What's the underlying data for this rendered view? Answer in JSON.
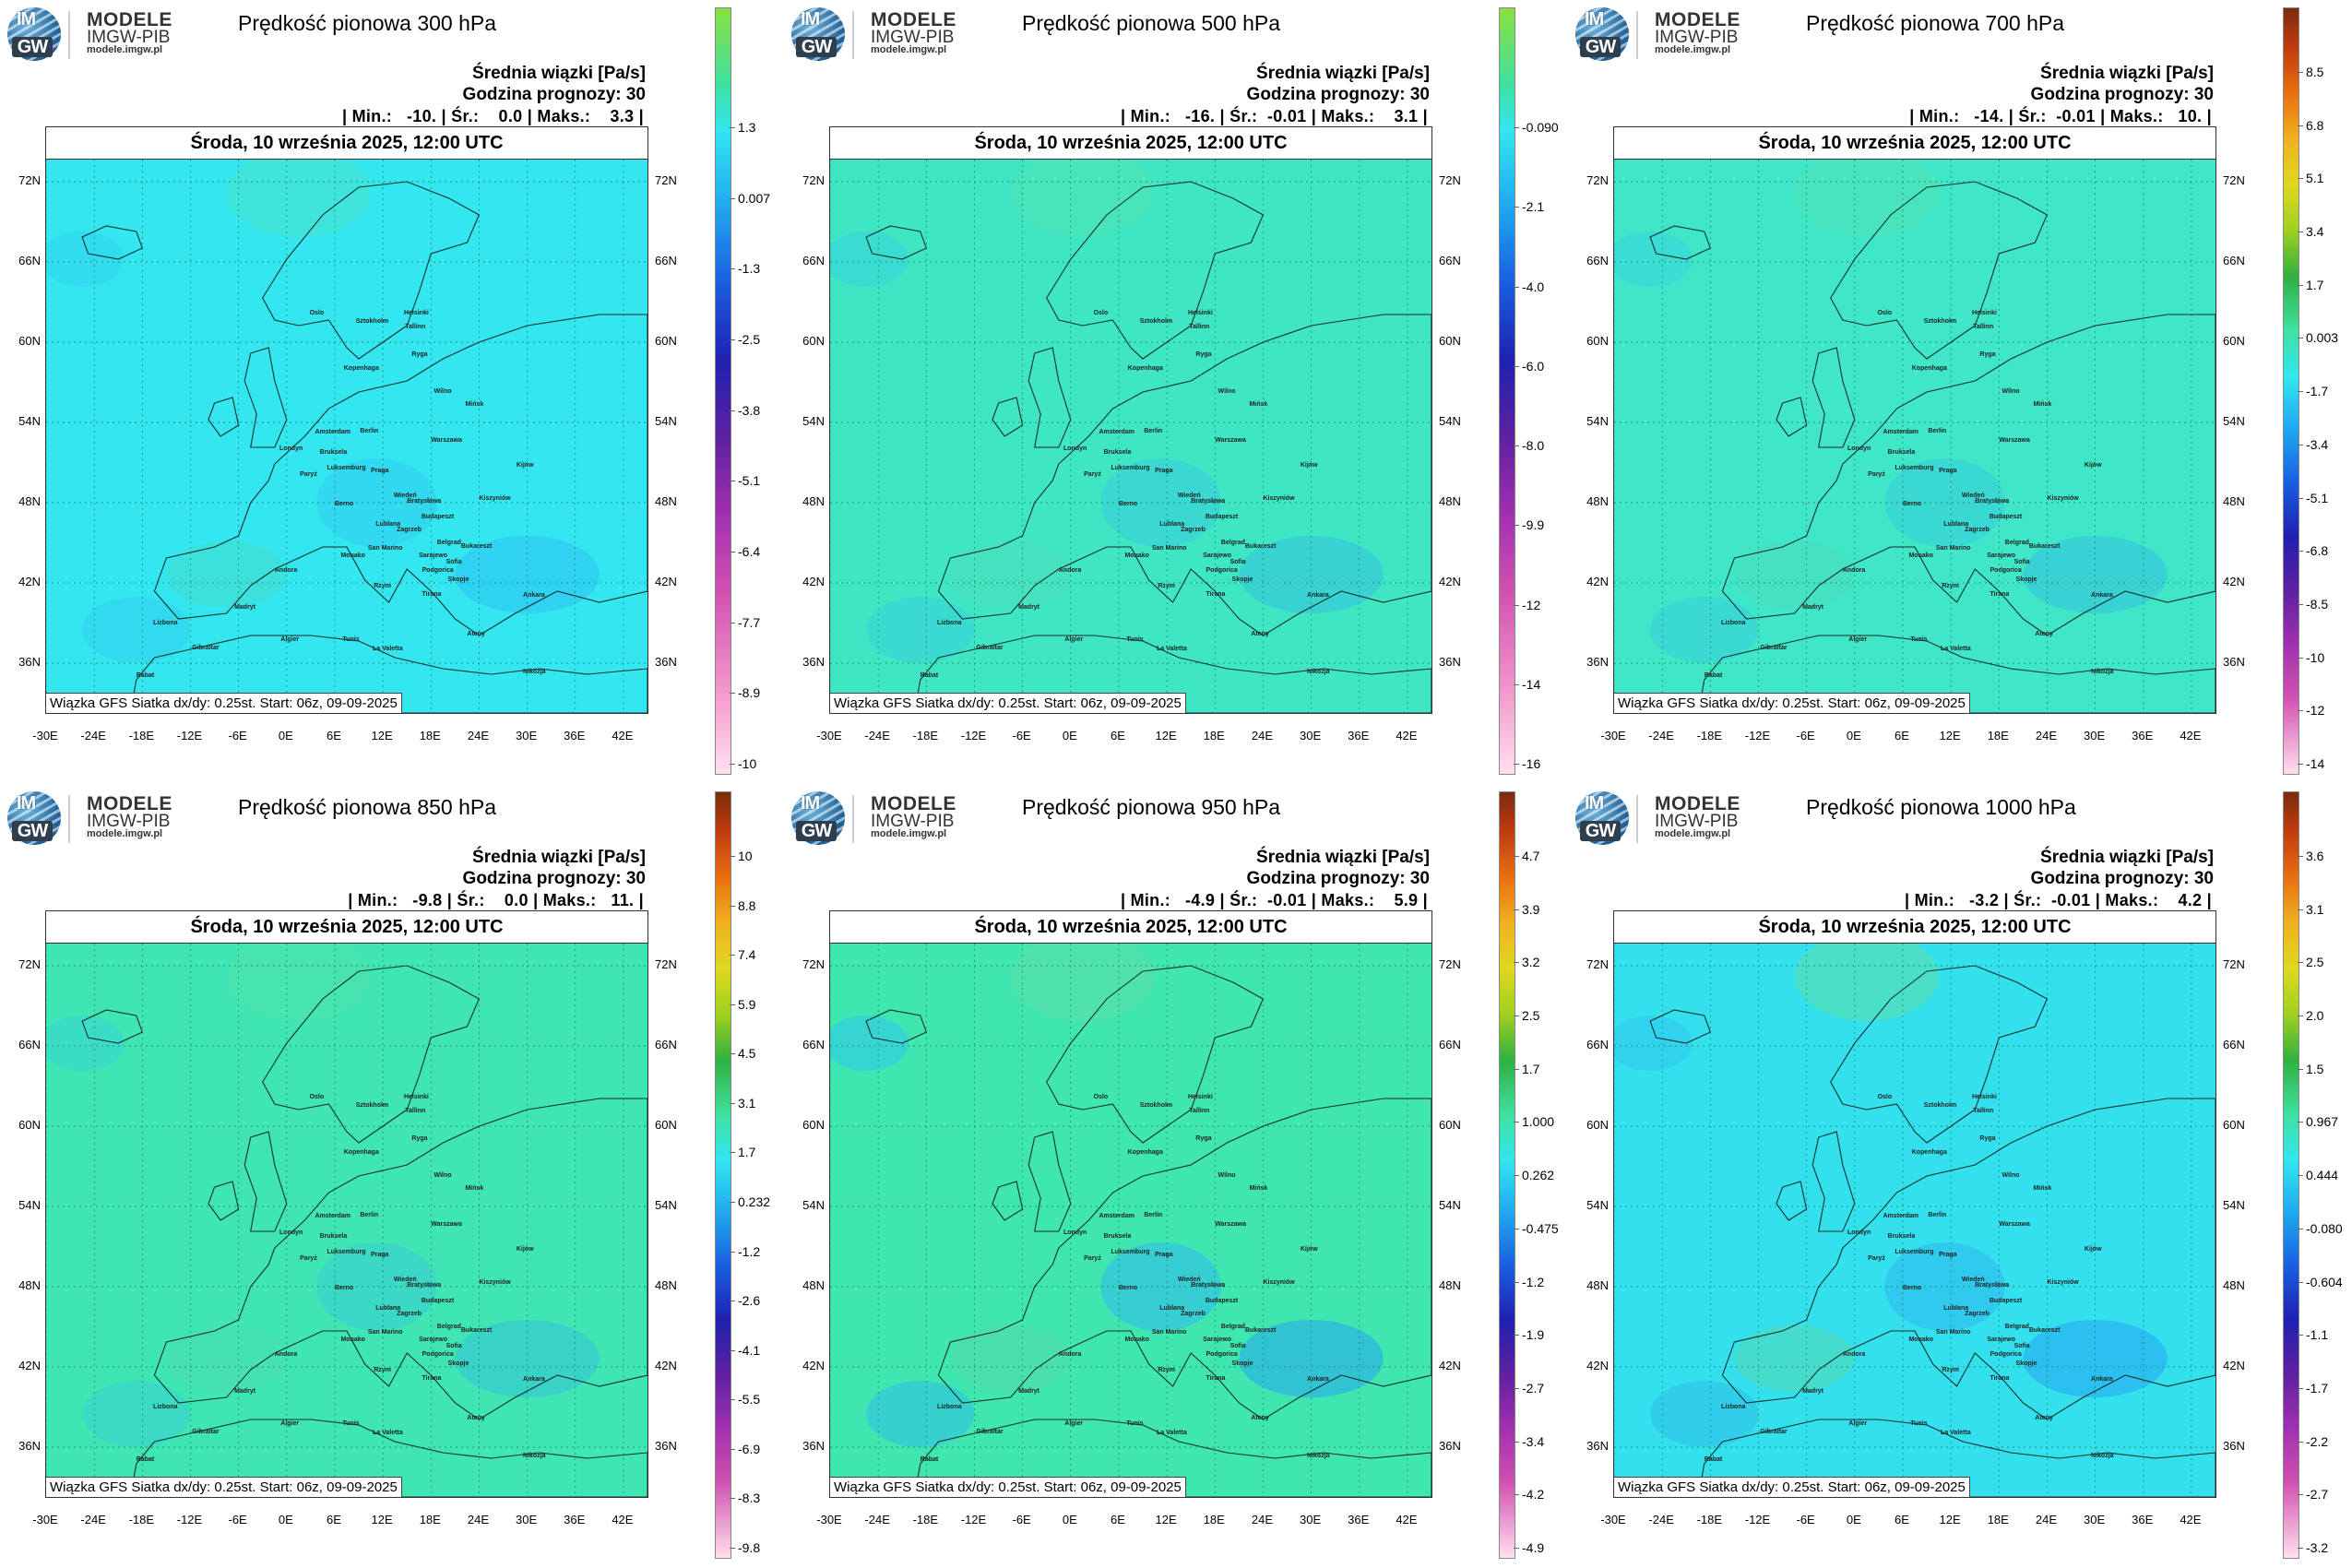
{
  "brand": {
    "line1": "MODELE",
    "line2": "IMGW-PIB",
    "line3": "modele.imgw.pl",
    "im": "IM",
    "gw": "GW"
  },
  "panels": [
    {
      "title": "Prędkość pionowa 300 hPa",
      "info1": "Średnia wiązki [Pa/s]",
      "info2": "Godzina prognozy: 30",
      "stats": "| Min.:   -10. | Śr.:    0.0 | Maks.:    3.3 |",
      "date": "Środa, 10 września 2025, 12:00 UTC",
      "source": "Wiązka GFS Siatka dx/dy: 0.25st. Start: 06z, 09-09-2025",
      "base_color": "#33e6f0",
      "colorbar": [
        "1.3",
        "0.007",
        "-1.3",
        "-2.5",
        "-3.8",
        "-5.1",
        "-6.4",
        "-7.7",
        "-8.9",
        "-10"
      ],
      "cbar_type": "neg"
    },
    {
      "title": "Prędkość pionowa 500 hPa",
      "info1": "Średnia wiązki [Pa/s]",
      "info2": "Godzina prognozy: 30",
      "stats": "| Min.:   -16. | Śr.:  -0.01 | Maks.:    3.1 |",
      "date": "Środa, 10 września 2025, 12:00 UTC",
      "source": "Wiązka GFS Siatka dx/dy: 0.25st. Start: 06z, 09-09-2025",
      "base_color": "#3fe6c4",
      "colorbar": [
        "-0.090",
        "-2.1",
        "-4.0",
        "-6.0",
        "-8.0",
        "-9.9",
        "-12",
        "-14",
        "-16"
      ],
      "cbar_type": "neg"
    },
    {
      "title": "Prędkość pionowa 700 hPa",
      "info1": "Średnia wiązki [Pa/s]",
      "info2": "Godzina prognozy: 30",
      "stats": "| Min.:   -14. | Śr.:  -0.01 | Maks.:   10. |",
      "date": "Środa, 10 września 2025, 12:00 UTC",
      "source": "Wiązka GFS Siatka dx/dy: 0.25st. Start: 06z, 09-09-2025",
      "base_color": "#3fe6c8",
      "colorbar": [
        "8.5",
        "6.8",
        "5.1",
        "3.4",
        "1.7",
        "0.003",
        "-1.7",
        "-3.4",
        "-5.1",
        "-6.8",
        "-8.5",
        "-10",
        "-12",
        "-14"
      ],
      "cbar_type": "full"
    },
    {
      "title": "Prędkość pionowa 850 hPa",
      "info1": "Średnia wiązki [Pa/s]",
      "info2": "Godzina prognozy: 30",
      "stats": "| Min.:   -9.8 | Śr.:    0.0 | Maks.:   11. |",
      "date": "Środa, 10 września 2025, 12:00 UTC",
      "source": "Wiązka GFS Siatka dx/dy: 0.25st. Start: 06z, 09-09-2025",
      "base_color": "#3fe6b4",
      "colorbar": [
        "10",
        "8.8",
        "7.4",
        "5.9",
        "4.5",
        "3.1",
        "1.7",
        "0.232",
        "-1.2",
        "-2.6",
        "-4.1",
        "-5.5",
        "-6.9",
        "-8.3",
        "-9.8"
      ],
      "cbar_type": "full"
    },
    {
      "title": "Prędkość pionowa 950 hPa",
      "info1": "Średnia wiązki [Pa/s]",
      "info2": "Godzina prognozy: 30",
      "stats": "| Min.:   -4.9 | Śr.:  -0.01 | Maks.:    5.9 |",
      "date": "Środa, 10 września 2025, 12:00 UTC",
      "source": "Wiązka GFS Siatka dx/dy: 0.25st. Start: 06z, 09-09-2025",
      "base_color": "#3fe6b0",
      "colorbar": [
        "4.7",
        "3.9",
        "3.2",
        "2.5",
        "1.7",
        "1.000",
        "0.262",
        "-0.475",
        "-1.2",
        "-1.9",
        "-2.7",
        "-3.4",
        "-4.2",
        "-4.9"
      ],
      "cbar_type": "full"
    },
    {
      "title": "Prędkość pionowa 1000 hPa",
      "info1": "Średnia wiązki [Pa/s]",
      "info2": "Godzina prognozy: 30",
      "stats": "| Min.:   -3.2 | Śr.:  -0.01 | Maks.:    4.2 |",
      "date": "Środa, 10 września 2025, 12:00 UTC",
      "source": "Wiązka GFS Siatka dx/dy: 0.25st. Start: 06z, 09-09-2025",
      "base_color": "#33e0ee",
      "colorbar": [
        "3.6",
        "3.1",
        "2.5",
        "2.0",
        "1.5",
        "0.967",
        "0.444",
        "-0.080",
        "-0.604",
        "-1.1",
        "-1.7",
        "-2.2",
        "-2.7",
        "-3.2"
      ],
      "cbar_type": "full"
    }
  ],
  "lat_labels": [
    "72N",
    "66N",
    "60N",
    "54N",
    "48N",
    "42N",
    "36N"
  ],
  "lon_labels": [
    "-30E",
    "-24E",
    "-18E",
    "-12E",
    "-6E",
    "0E",
    "6E",
    "12E",
    "18E",
    "24E",
    "30E",
    "36E",
    "42E"
  ],
  "cities": [
    "Oslo",
    "Sztokholm",
    "Helsinki",
    "Tallinn",
    "Ryga",
    "Kopenhaga",
    "Wilno",
    "Mińsk",
    "Amsterdam",
    "Berlin",
    "Warszawa",
    "Londyn",
    "Bruksela",
    "Luksemburg",
    "Praga",
    "Kijów",
    "Paryż",
    "Wiedeń",
    "Bratysława",
    "Berno",
    "Budapeszt",
    "Kiszyniów",
    "Lublana",
    "Zagrzeb",
    "Belgrad",
    "Bukareszt",
    "Sarajewo",
    "San Marino",
    "Monako",
    "Podgorica",
    "Sofia",
    "Andora",
    "Skopje",
    "Madryt",
    "Tirana",
    "Rzym",
    "Ankara",
    "Lizbona",
    "Ateny",
    "Gibraltar",
    "Algier",
    "Tunis",
    "La Valetta",
    "Rabat",
    "Nikozja"
  ]
}
